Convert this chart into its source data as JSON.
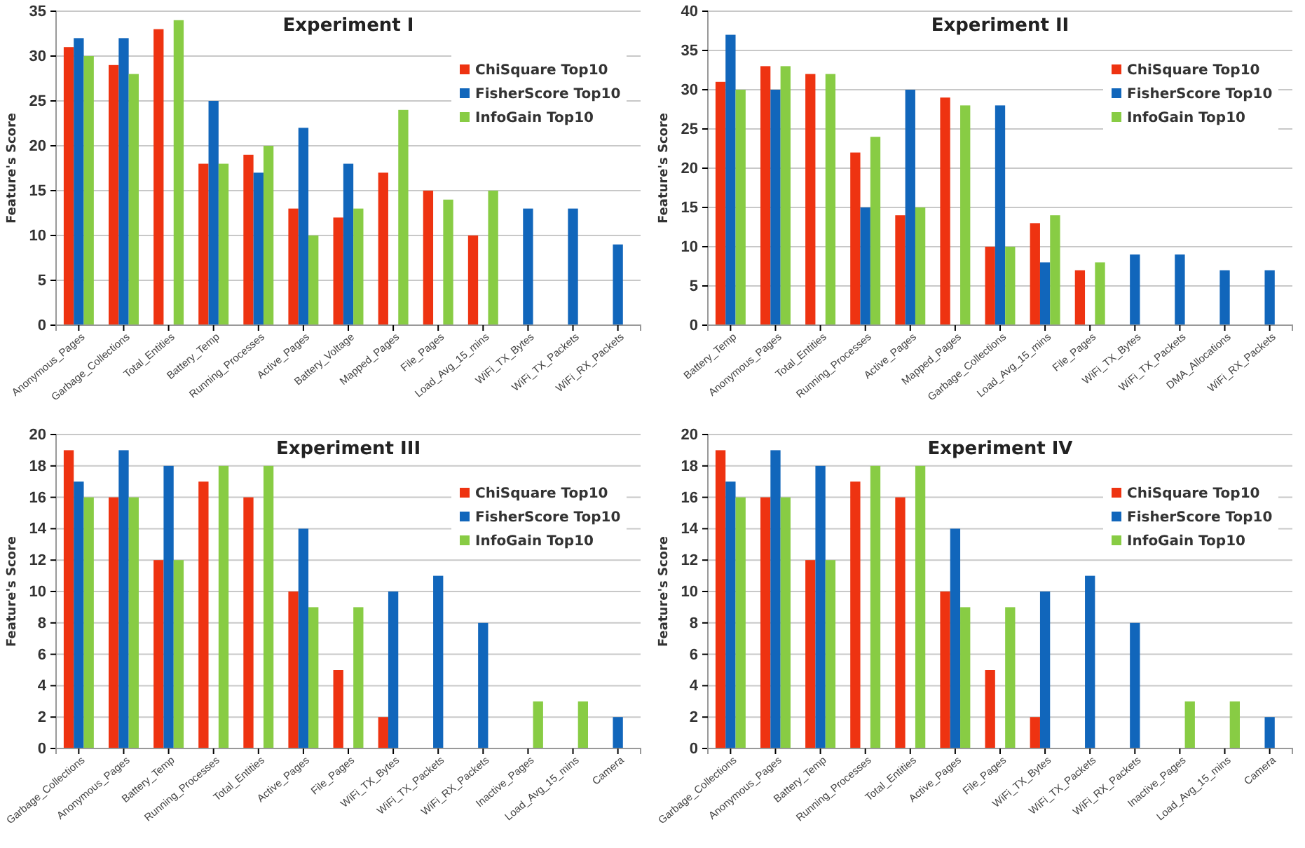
{
  "chart_data": [
    {
      "type": "bar",
      "title": "Experiment I",
      "ylabel": "Feature's Score",
      "categories": [
        "Anonymous_Pages",
        "Garbage_Collections",
        "Total_Entities",
        "Battery_Temp",
        "Running_Processes",
        "Active_Pages",
        "Battery_Voltage",
        "Mapped_Pages",
        "File_Pages",
        "Load_Avg_15_mins",
        "WiFi_TX_Bytes",
        "WiFi_TX_Packets",
        "WiFi_RX_Packets"
      ],
      "series": [
        {
          "name": "ChiSquare Top10",
          "color": "#ee3311",
          "values": [
            31,
            29,
            33,
            18,
            19,
            13,
            12,
            17,
            15,
            10,
            null,
            null,
            null
          ]
        },
        {
          "name": "FisherScore Top10",
          "color": "#1166bb",
          "values": [
            32,
            32,
            null,
            25,
            17,
            22,
            18,
            null,
            null,
            null,
            13,
            13,
            9
          ]
        },
        {
          "name": "InfoGain Top10",
          "color": "#88cc44",
          "values": [
            30,
            28,
            34,
            18,
            20,
            10,
            13,
            24,
            14,
            15,
            null,
            null,
            null
          ]
        }
      ],
      "ylim": [
        0,
        35
      ],
      "yticks": [
        0,
        5,
        10,
        15,
        20,
        25,
        30,
        35
      ],
      "grid": "y",
      "legend": "top right"
    },
    {
      "type": "bar",
      "title": "Experiment II",
      "ylabel": "Feature's Score",
      "categories": [
        "Battery_Temp",
        "Anonymous_Pages",
        "Total_Entities",
        "Running_Processes",
        "Active_Pages",
        "Mapped_Pages",
        "Garbage_Collections",
        "Load_Avg_15_mins",
        "File_Pages",
        "WiFi_TX_Bytes",
        "WiFi_TX_Packets",
        "DMA_Allocations",
        "WiFi_RX_Packets"
      ],
      "series": [
        {
          "name": "ChiSquare Top10",
          "color": "#ee3311",
          "values": [
            31,
            33,
            32,
            22,
            14,
            29,
            10,
            13,
            7,
            null,
            null,
            null,
            null
          ]
        },
        {
          "name": "FisherScore Top10",
          "color": "#1166bb",
          "values": [
            37,
            30,
            null,
            15,
            30,
            null,
            28,
            8,
            null,
            9,
            9,
            7,
            7
          ]
        },
        {
          "name": "InfoGain Top10",
          "color": "#88cc44",
          "values": [
            30,
            33,
            32,
            24,
            15,
            28,
            10,
            14,
            8,
            null,
            null,
            null,
            null
          ]
        }
      ],
      "ylim": [
        0,
        40
      ],
      "yticks": [
        0,
        5,
        10,
        15,
        20,
        25,
        30,
        35,
        40
      ],
      "grid": "y",
      "legend": "top right"
    },
    {
      "type": "bar",
      "title": "Experiment III",
      "ylabel": "Feature's Score",
      "categories": [
        "Garbage_Collections",
        "Anonymous_Pages",
        "Battery_Temp",
        "Running_Processes",
        "Total_Entities",
        "Active_Pages",
        "File_Pages",
        "WiFi_TX_Bytes",
        "WiFi_TX_Packets",
        "WiFi_RX_Packets",
        "Inactive_Pages",
        "Load_Avg_15_mins",
        "Camera"
      ],
      "series": [
        {
          "name": "ChiSquare Top10",
          "color": "#ee3311",
          "values": [
            19,
            16,
            12,
            17,
            16,
            10,
            5,
            2,
            null,
            null,
            null,
            null,
            null
          ]
        },
        {
          "name": "FisherScore Top10",
          "color": "#1166bb",
          "values": [
            17,
            19,
            18,
            null,
            null,
            14,
            null,
            10,
            11,
            8,
            null,
            null,
            2
          ]
        },
        {
          "name": "InfoGain Top10",
          "color": "#88cc44",
          "values": [
            16,
            16,
            12,
            18,
            18,
            9,
            9,
            null,
            null,
            null,
            3,
            3,
            null
          ]
        }
      ],
      "ylim": [
        0,
        20
      ],
      "yticks": [
        0,
        2,
        4,
        6,
        8,
        10,
        12,
        14,
        16,
        18,
        20
      ],
      "grid": "y",
      "legend": "top right"
    },
    {
      "type": "bar",
      "title": "Experiment IV",
      "ylabel": "Feature's Score",
      "categories": [
        "Garbage_Collections",
        "Anonymous_Pages",
        "Battery_Temp",
        "Running_Processes",
        "Total_Entities",
        "Active_Pages",
        "File_Pages",
        "WiFi_TX_Bytes",
        "WiFi_TX_Packets",
        "WiFi_RX_Packets",
        "Inactive_Pages",
        "Load_Avg_15_mins",
        "Camera"
      ],
      "series": [
        {
          "name": "ChiSquare Top10",
          "color": "#ee3311",
          "values": [
            19,
            16,
            12,
            17,
            16,
            10,
            5,
            2,
            null,
            null,
            null,
            null,
            null
          ]
        },
        {
          "name": "FisherScore Top10",
          "color": "#1166bb",
          "values": [
            17,
            19,
            18,
            null,
            null,
            14,
            null,
            10,
            11,
            8,
            null,
            null,
            2
          ]
        },
        {
          "name": "InfoGain Top10",
          "color": "#88cc44",
          "values": [
            16,
            16,
            12,
            18,
            18,
            9,
            9,
            null,
            null,
            null,
            3,
            3,
            null
          ]
        }
      ],
      "ylim": [
        0,
        20
      ],
      "yticks": [
        0,
        2,
        4,
        6,
        8,
        10,
        12,
        14,
        16,
        18,
        20
      ],
      "grid": "y",
      "legend": "top right"
    }
  ]
}
